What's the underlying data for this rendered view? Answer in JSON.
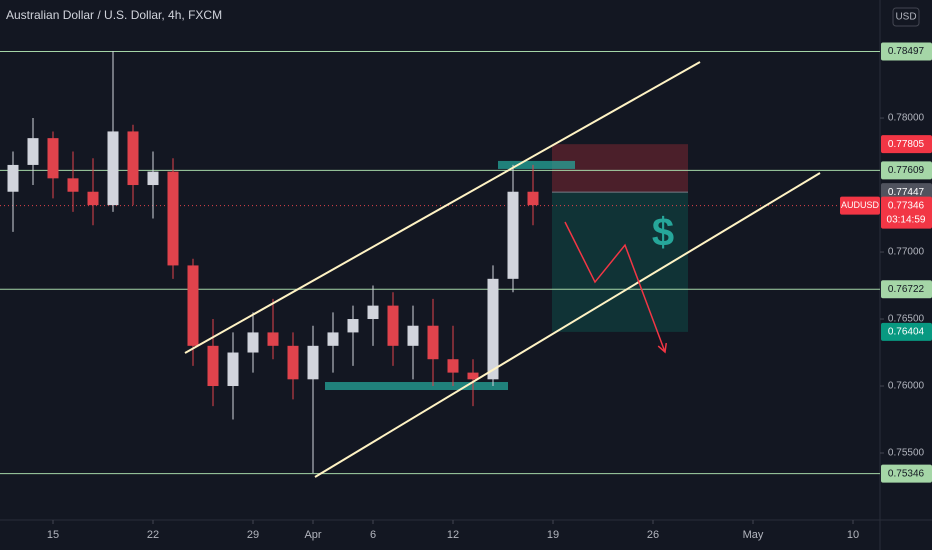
{
  "chart_data": {
    "type": "candlestick",
    "title": "Australian Dollar / U.S. Dollar, 4h, FXCM",
    "currency": "USD",
    "x": [
      -2,
      -1,
      0,
      1,
      2,
      3,
      4,
      5,
      6,
      7,
      8,
      9,
      10,
      11,
      12,
      13,
      14,
      15,
      16,
      17,
      18,
      19,
      20,
      21,
      22,
      23,
      24
    ],
    "open": [
      0.7745,
      0.7765,
      0.7785,
      0.7755,
      0.7745,
      0.7735,
      0.779,
      0.775,
      0.776,
      0.769,
      0.763,
      0.76,
      0.7625,
      0.764,
      0.763,
      0.7605,
      0.763,
      0.764,
      0.765,
      0.766,
      0.763,
      0.7645,
      0.762,
      0.761,
      0.7605,
      0.768,
      0.7745
    ],
    "high": [
      0.7775,
      0.78,
      0.779,
      0.7775,
      0.777,
      0.785,
      0.7795,
      0.7775,
      0.777,
      0.7695,
      0.765,
      0.764,
      0.7655,
      0.7665,
      0.764,
      0.7645,
      0.7655,
      0.766,
      0.7675,
      0.767,
      0.766,
      0.7665,
      0.7645,
      0.762,
      0.769,
      0.7765,
      0.7765
    ],
    "low": [
      0.7715,
      0.775,
      0.774,
      0.773,
      0.772,
      0.773,
      0.7735,
      0.7725,
      0.768,
      0.7615,
      0.7585,
      0.7575,
      0.761,
      0.762,
      0.759,
      0.7535,
      0.761,
      0.7615,
      0.763,
      0.7615,
      0.7605,
      0.76,
      0.76,
      0.7585,
      0.76,
      0.767,
      0.772
    ],
    "close": [
      0.7765,
      0.7785,
      0.7755,
      0.7745,
      0.7735,
      0.779,
      0.775,
      0.776,
      0.769,
      0.763,
      0.76,
      0.7625,
      0.764,
      0.763,
      0.7605,
      0.763,
      0.764,
      0.765,
      0.766,
      0.763,
      0.7645,
      0.762,
      0.761,
      0.7605,
      0.768,
      0.7745,
      0.7735
    ],
    "up_color": "#d1d4dc",
    "down_color": "#e0434c",
    "xlim": [
      -2.65,
      41.35
    ],
    "ylim": [
      0.75,
      0.78881
    ],
    "xticks": [
      {
        "value": 0,
        "label": "15"
      },
      {
        "value": 5,
        "label": "22"
      },
      {
        "value": 10,
        "label": "29"
      },
      {
        "value": 13,
        "label": "Apr"
      },
      {
        "value": 16,
        "label": "6"
      },
      {
        "value": 20,
        "label": "12"
      },
      {
        "value": 25,
        "label": "19"
      },
      {
        "value": 30,
        "label": "26"
      },
      {
        "value": 35,
        "label": "May"
      },
      {
        "value": 40,
        "label": "10"
      }
    ],
    "yticks": [
      {
        "value": 0.755,
        "label": "0.75500"
      },
      {
        "value": 0.76,
        "label": "0.76000"
      },
      {
        "value": 0.765,
        "label": "0.76500"
      },
      {
        "value": 0.77,
        "label": "0.77000"
      },
      {
        "value": 0.78,
        "label": "0.78000"
      }
    ],
    "grid": false,
    "levels": [
      0.78497,
      0.77609,
      0.76722,
      0.75346
    ],
    "level_color": "#a5d6a7",
    "trendlines": [
      {
        "x": [
          6.6,
          32.35
        ],
        "y": [
          0.76246,
          0.78418
        ]
      },
      {
        "x": [
          13.1,
          38.35
        ],
        "y": [
          0.75321,
          0.7759
        ]
      }
    ],
    "zones": [
      {
        "x": [
          13.6,
          22.75
        ],
        "y": 0.76
      },
      {
        "x": [
          22.25,
          26.1
        ],
        "y": 0.7765
      }
    ],
    "position": {
      "x": [
        24.95,
        31.75
      ],
      "entry": 0.77447,
      "stop": 0.77805,
      "target": 0.76404
    },
    "projection": {
      "x": [
        25.6,
        27.1,
        28.6,
        30.6
      ],
      "y": [
        0.77224,
        0.76776,
        0.77052,
        0.76254
      ]
    },
    "annotation": "$",
    "last_price": {
      "symbol": "AUDUSD",
      "value": 0.77346,
      "countdown": "03:14:59"
    }
  }
}
